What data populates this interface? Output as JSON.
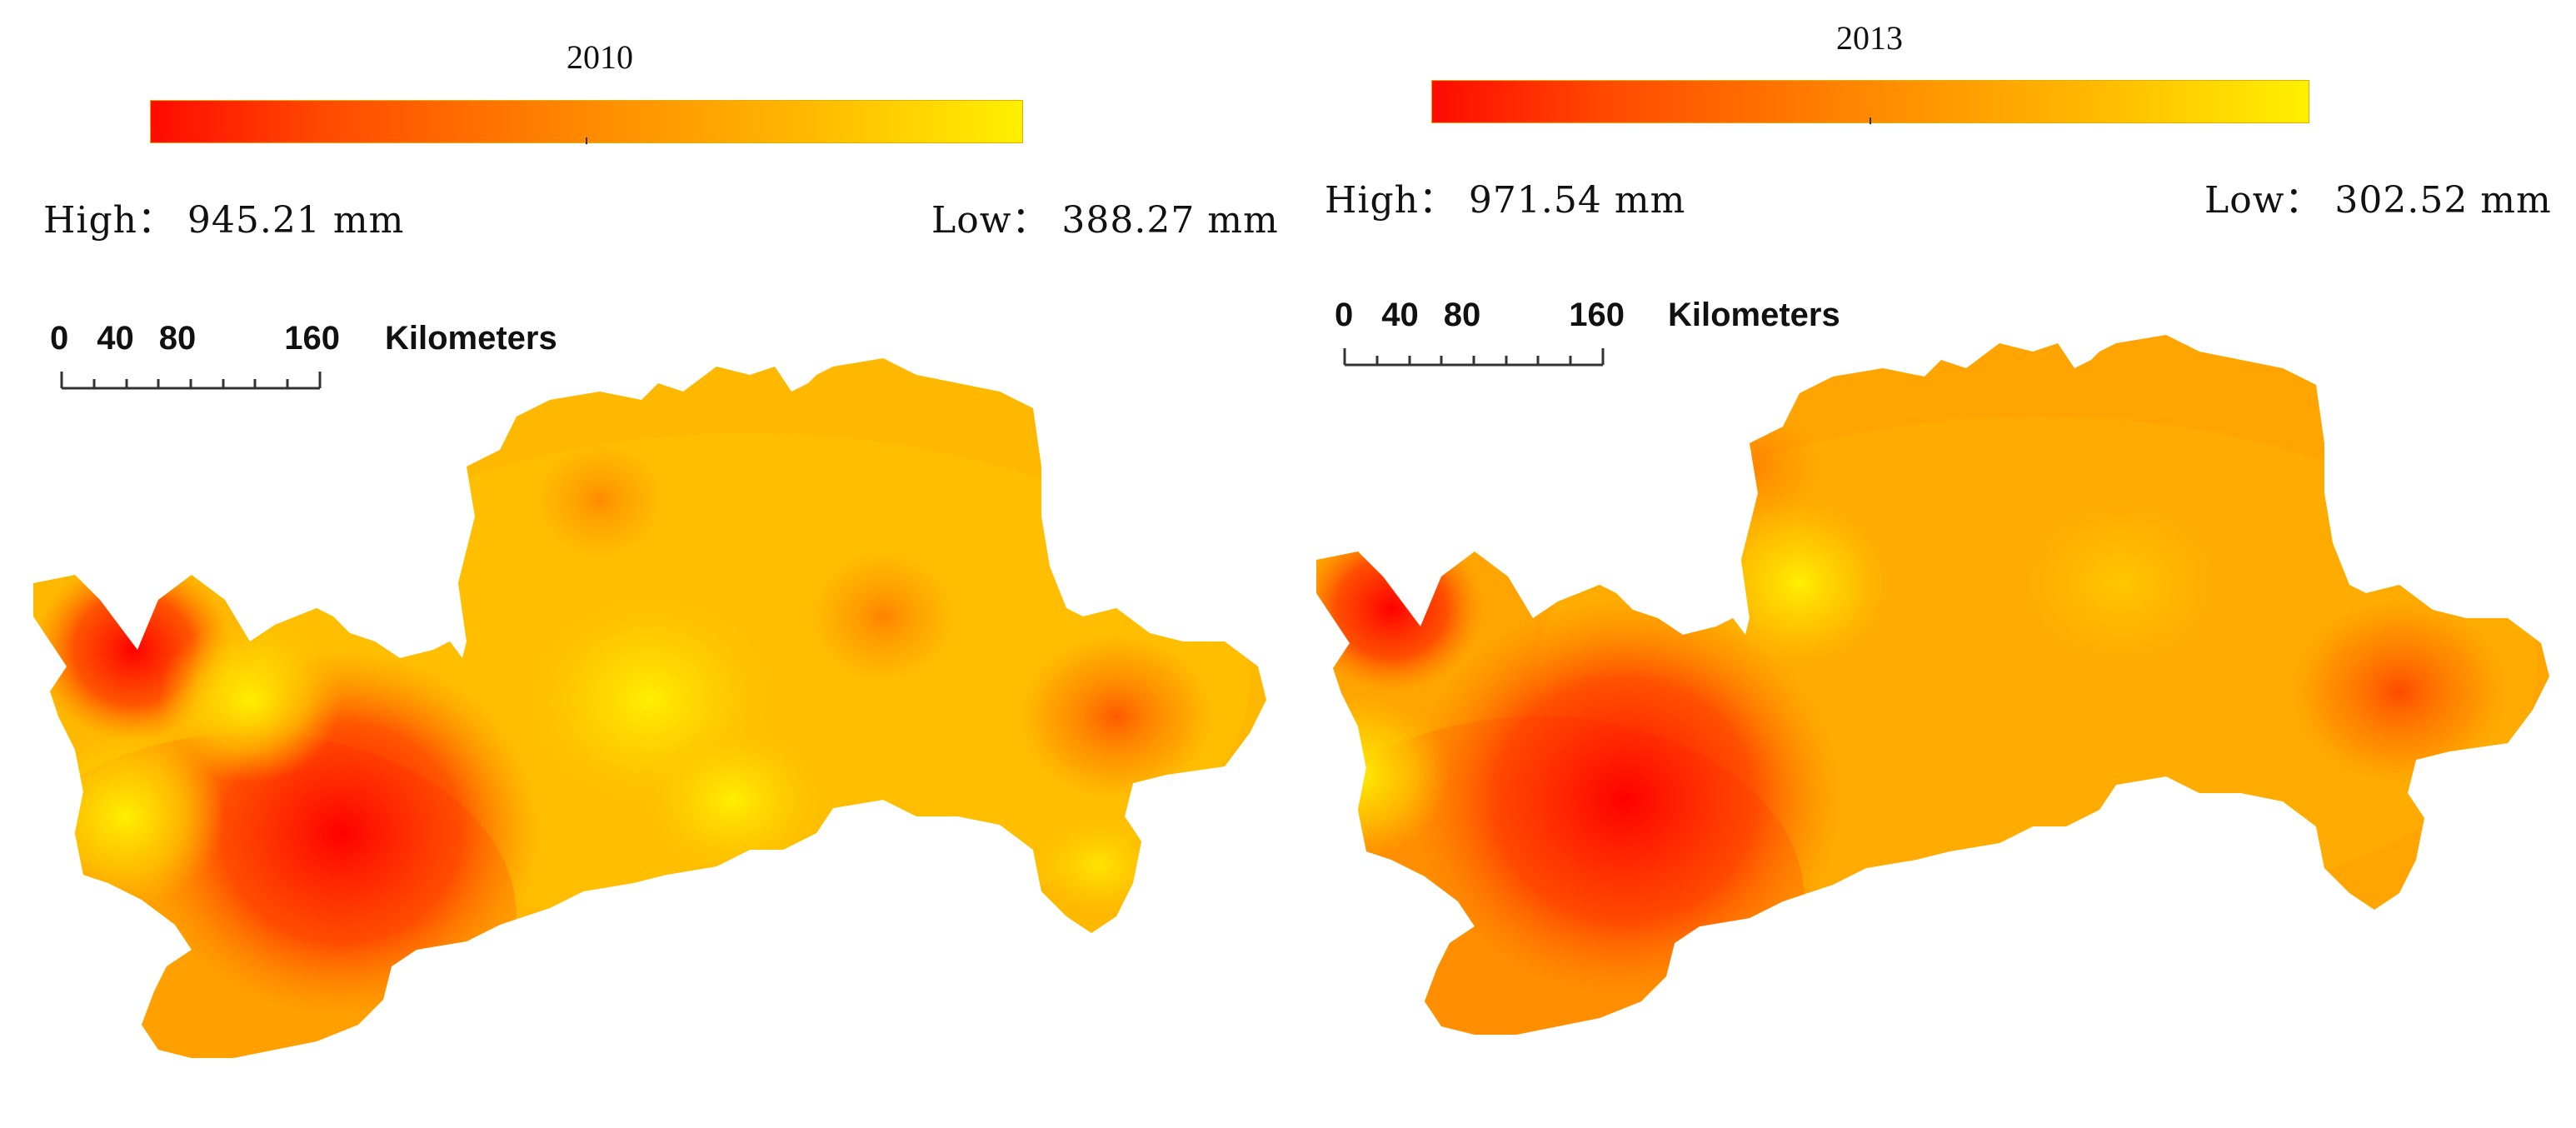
{
  "panels": [
    {
      "year": "2010",
      "high_label": "High： 945.21 mm",
      "low_label": "Low： 388.27 mm",
      "high_value_mm": 945.21,
      "low_value_mm": 388.27,
      "scale": {
        "ticks": [
          "0",
          "40",
          "80",
          "160"
        ],
        "unit": "Kilometers"
      }
    },
    {
      "year": "2013",
      "high_label": "High： 971.54 mm",
      "low_label": "Low： 302.52 mm",
      "high_value_mm": 971.54,
      "low_value_mm": 302.52,
      "scale": {
        "ticks": [
          "0",
          "40",
          "80",
          "160"
        ],
        "unit": "Kilometers"
      }
    }
  ],
  "colors": {
    "high": "#ff0000",
    "mid": "#ff8c00",
    "low": "#ffee00"
  }
}
